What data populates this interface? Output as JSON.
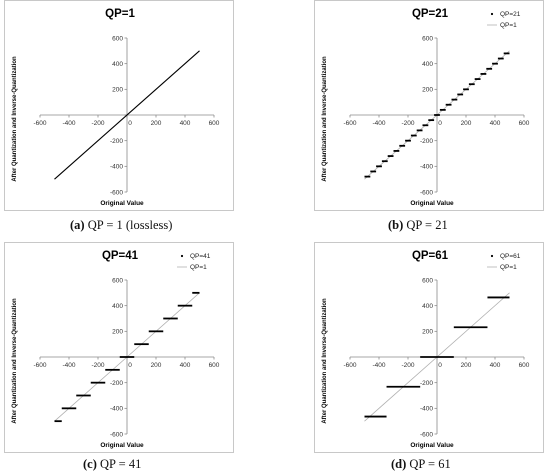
{
  "chart_data": [
    {
      "type": "line",
      "title": "QP=1",
      "xlabel": "Original Value",
      "ylabel": "After Quantization and Inverse-Quantization",
      "xlim": [
        -600,
        600
      ],
      "ylim": [
        -600,
        600
      ],
      "xticks": [
        -600,
        -400,
        -200,
        0,
        200,
        400,
        600
      ],
      "yticks": [
        -600,
        -400,
        -200,
        0,
        200,
        400,
        600
      ],
      "legend": null,
      "series": [
        {
          "name": "",
          "style": "line",
          "color": "#000000",
          "x": [
            -500,
            500
          ],
          "y": [
            -500,
            500
          ]
        }
      ],
      "caption_label": "(a)",
      "caption_text": "QP = 1 (lossless)"
    },
    {
      "type": "line",
      "title": "QP=21",
      "xlabel": "Original Value",
      "ylabel": "After Quantization and Inverse-Quantization",
      "xlim": [
        -600,
        600
      ],
      "ylim": [
        -600,
        600
      ],
      "xticks": [
        -600,
        -400,
        -200,
        0,
        200,
        400,
        600
      ],
      "yticks": [
        -600,
        -400,
        -200,
        0,
        200,
        400,
        600
      ],
      "legend": "top-right",
      "step": 40,
      "series": [
        {
          "name": "QP=21",
          "style": "steps",
          "color": "#000000",
          "x": [
            -500,
            500
          ]
        },
        {
          "name": "QP=1",
          "style": "line",
          "color": "#b0b0b0",
          "x": [
            -500,
            500
          ],
          "y": [
            -500,
            500
          ]
        }
      ],
      "caption_label": "(b)",
      "caption_text": "QP = 21"
    },
    {
      "type": "line",
      "title": "QP=41",
      "xlabel": "Original Value",
      "ylabel": "After Quantization and Inverse-Quantization",
      "xlim": [
        -600,
        600
      ],
      "ylim": [
        -600,
        600
      ],
      "xticks": [
        -600,
        -400,
        -200,
        0,
        200,
        400,
        600
      ],
      "yticks": [
        -600,
        -400,
        -200,
        0,
        200,
        400,
        600
      ],
      "legend": "top-right",
      "step": 100,
      "series": [
        {
          "name": "QP=41",
          "style": "steps",
          "color": "#000000",
          "x": [
            -500,
            500
          ]
        },
        {
          "name": "QP=1",
          "style": "line",
          "color": "#b0b0b0",
          "x": [
            -500,
            500
          ],
          "y": [
            -500,
            500
          ]
        }
      ],
      "caption_label": "(c)",
      "caption_text": "QP = 41"
    },
    {
      "type": "line",
      "title": "QP=61",
      "xlabel": "Original Value",
      "ylabel": "After Quantization and Inverse-Quantization",
      "xlim": [
        -600,
        600
      ],
      "ylim": [
        -600,
        600
      ],
      "xticks": [
        -600,
        -400,
        -200,
        0,
        200,
        400,
        600
      ],
      "yticks": [
        -600,
        -400,
        -200,
        0,
        200,
        400,
        600
      ],
      "legend": "top-right",
      "step": 232,
      "series": [
        {
          "name": "QP=61",
          "style": "steps",
          "color": "#000000",
          "x": [
            -500,
            500
          ]
        },
        {
          "name": "QP=1",
          "style": "line",
          "color": "#b0b0b0",
          "x": [
            -500,
            500
          ],
          "y": [
            -500,
            500
          ]
        }
      ],
      "caption_label": "(d)",
      "caption_text": "QP = 61"
    }
  ]
}
